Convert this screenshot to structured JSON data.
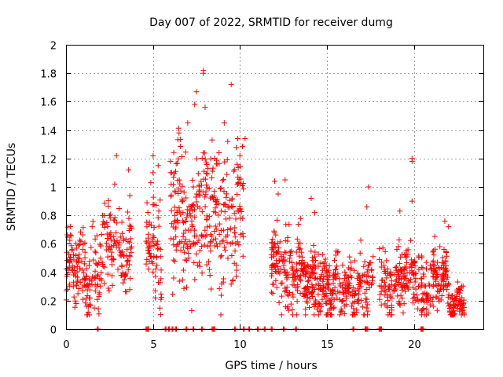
{
  "chart_data": {
    "type": "scatter",
    "title": "Day 007 of 2022, SRMTID for receiver dumg",
    "xlabel": "GPS time / hours",
    "ylabel": "SRMTID / TECUs",
    "xlim": [
      0,
      24
    ],
    "ylim": [
      0,
      2
    ],
    "xticks": [
      0,
      5,
      10,
      15,
      20
    ],
    "yticks": [
      0,
      0.2,
      0.4,
      0.6,
      0.8,
      1,
      1.2,
      1.4,
      1.6,
      1.8,
      2
    ],
    "grid": true,
    "marker": "+",
    "color": "#ff0000",
    "clusters": [
      {
        "start": 0.0,
        "end": 1.9,
        "base": 0.38,
        "spread": 0.12,
        "n": 150
      },
      {
        "start": 1.9,
        "end": 3.8,
        "base": 0.55,
        "spread": 0.15,
        "n": 130
      },
      {
        "start": 4.6,
        "end": 5.5,
        "base": 0.62,
        "spread": 0.18,
        "n": 70
      },
      {
        "start": 6.0,
        "end": 8.0,
        "base": 0.8,
        "spread": 0.22,
        "n": 160
      },
      {
        "start": 8.0,
        "end": 10.2,
        "base": 0.75,
        "spread": 0.25,
        "n": 170
      },
      {
        "start": 11.8,
        "end": 13.5,
        "base": 0.4,
        "spread": 0.13,
        "n": 150
      },
      {
        "start": 13.5,
        "end": 15.2,
        "base": 0.32,
        "spread": 0.11,
        "n": 170
      },
      {
        "start": 15.2,
        "end": 16.3,
        "base": 0.25,
        "spread": 0.08,
        "n": 90
      },
      {
        "start": 16.3,
        "end": 17.7,
        "base": 0.3,
        "spread": 0.12,
        "n": 90
      },
      {
        "start": 18.0,
        "end": 20.3,
        "base": 0.34,
        "spread": 0.1,
        "n": 180
      },
      {
        "start": 20.4,
        "end": 22.0,
        "base": 0.3,
        "spread": 0.1,
        "n": 140
      },
      {
        "start": 22.0,
        "end": 22.9,
        "base": 0.22,
        "spread": 0.06,
        "n": 80
      }
    ],
    "peaks": [
      {
        "x": 1.5,
        "y": 0.72
      },
      {
        "x": 2.1,
        "y": 0.8
      },
      {
        "x": 2.8,
        "y": 1.02
      },
      {
        "x": 2.9,
        "y": 1.22
      },
      {
        "x": 3.6,
        "y": 1.12
      },
      {
        "x": 5.0,
        "y": 1.1
      },
      {
        "x": 5.3,
        "y": 1.15
      },
      {
        "x": 6.0,
        "y": 1.18
      },
      {
        "x": 6.5,
        "y": 1.38
      },
      {
        "x": 7.0,
        "y": 1.45
      },
      {
        "x": 7.4,
        "y": 1.58
      },
      {
        "x": 7.5,
        "y": 1.67
      },
      {
        "x": 7.9,
        "y": 1.82
      },
      {
        "x": 7.9,
        "y": 1.8
      },
      {
        "x": 8.0,
        "y": 1.56
      },
      {
        "x": 8.4,
        "y": 1.33
      },
      {
        "x": 8.8,
        "y": 1.24
      },
      {
        "x": 9.1,
        "y": 1.45
      },
      {
        "x": 9.3,
        "y": 1.32
      },
      {
        "x": 9.5,
        "y": 1.72
      },
      {
        "x": 10.0,
        "y": 1.22
      },
      {
        "x": 10.3,
        "y": 1.34
      },
      {
        "x": 12.0,
        "y": 1.04
      },
      {
        "x": 12.2,
        "y": 0.95
      },
      {
        "x": 12.6,
        "y": 1.05
      },
      {
        "x": 14.1,
        "y": 0.92
      },
      {
        "x": 14.3,
        "y": 0.82
      },
      {
        "x": 17.4,
        "y": 1.0
      },
      {
        "x": 17.3,
        "y": 0.86
      },
      {
        "x": 19.2,
        "y": 0.83
      },
      {
        "x": 19.9,
        "y": 1.2
      },
      {
        "x": 19.9,
        "y": 1.18
      },
      {
        "x": 19.9,
        "y": 0.9
      },
      {
        "x": 22.0,
        "y": 0.72
      },
      {
        "x": 21.5,
        "y": 0.58
      }
    ],
    "zero_points": [
      1.8,
      4.6,
      4.7,
      5.7,
      5.9,
      6.1,
      6.3,
      6.9,
      7.3,
      7.8,
      8.4,
      8.5,
      9.7,
      10.2,
      10.5,
      11.0,
      11.4,
      11.8,
      12.5,
      13.2,
      16.5,
      17.2,
      17.3,
      18.0,
      18.1,
      20.4,
      20.5
    ]
  }
}
